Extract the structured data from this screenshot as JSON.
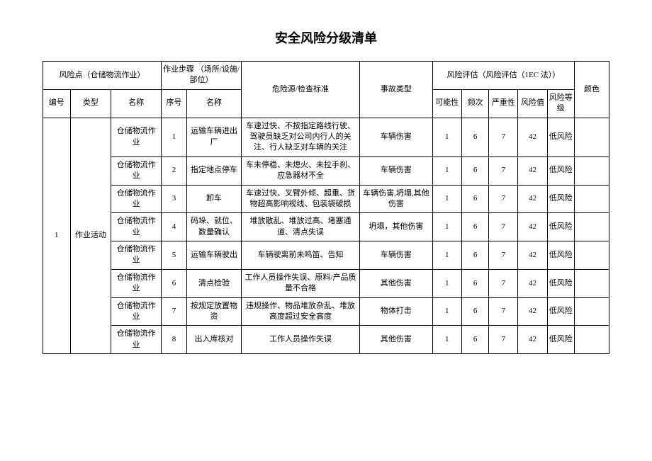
{
  "title": "安全风险分级清单",
  "headers": {
    "risk_point": "风险点（仓储物流作业）",
    "risk_point_num": "编号",
    "risk_point_type": "类型",
    "risk_point_name": "名称",
    "step": "作业步骤\n（场所/设施/部位）",
    "step_num": "序号",
    "step_name": "名称",
    "hazard": "危险源/检查标准",
    "accident": "事故类型",
    "eval": "风险评估（风险评估（1EC 法））",
    "l": "可能性",
    "e": "频次",
    "c": "严重性",
    "d": "风险值",
    "level": "风险等级",
    "color": "颜色"
  },
  "group": {
    "num": "1",
    "type": "作业活动"
  },
  "rows": [
    {
      "name": "仓储物流作业",
      "step_num": "1",
      "step_name": "运输车辆进出厂",
      "hazard": "车速过快、不按指定路线行驶、驾驶员缺乏对公司内行人的关注、行人缺乏对车辆的关注",
      "accident": "车辆伤害",
      "l": "1",
      "e": "6",
      "c": "7",
      "d": "42",
      "level": "低风险"
    },
    {
      "name": "仓储物流作业",
      "step_num": "2",
      "step_name": "指定地点停车",
      "hazard": "车未停稳、未熄火、未拉手刹、应急器材不全",
      "accident": "车辆伤害",
      "l": "1",
      "e": "6",
      "c": "7",
      "d": "42",
      "level": "低风险"
    },
    {
      "name": "仓储物流作业",
      "step_num": "3",
      "step_name": "卸车",
      "hazard": "车速过快、叉臂外倾、超重、货物超高影响视线、包装袋破损",
      "accident": "车辆伤害,坍塌,其他伤害",
      "l": "1",
      "e": "6",
      "c": "7",
      "d": "42",
      "level": "低风险"
    },
    {
      "name": "仓储物流作业",
      "step_num": "4",
      "step_name": "码垛、就位、数量确认",
      "hazard": "堆放散乱、堆放过高、堵塞通道、清点失误",
      "accident": "坍塌，其他伤害",
      "l": "1",
      "e": "6",
      "c": "7",
      "d": "42",
      "level": "低风险"
    },
    {
      "name": "仓储物流作业",
      "step_num": "5",
      "step_name": "运输车辆驶出",
      "hazard": "车辆驶离前未鸣笛、告知",
      "accident": "车辆伤害",
      "l": "1",
      "e": "6",
      "c": "7",
      "d": "42",
      "level": "低风险"
    },
    {
      "name": "仓储物流作业",
      "step_num": "6",
      "step_name": "清点检验",
      "hazard": "工作人员操作失误、原料/产品质量不合格",
      "accident": "其他伤害",
      "l": "1",
      "e": "6",
      "c": "7",
      "d": "42",
      "level": "低风险"
    },
    {
      "name": "仓储物流作业",
      "step_num": "7",
      "step_name": "按规定放置物资",
      "hazard": "违规操作、物品堆放杂乱、堆放高度超过安全高度",
      "accident": "物体打击",
      "l": "1",
      "e": "6",
      "c": "7",
      "d": "42",
      "level": "低风险"
    },
    {
      "name": "仓储物流作业",
      "step_num": "8",
      "step_name": "出入库核对",
      "hazard": "工作人员操作失误",
      "accident": "其他伤害",
      "l": "1",
      "e": "6",
      "c": "7",
      "d": "42",
      "level": "低风险"
    }
  ]
}
